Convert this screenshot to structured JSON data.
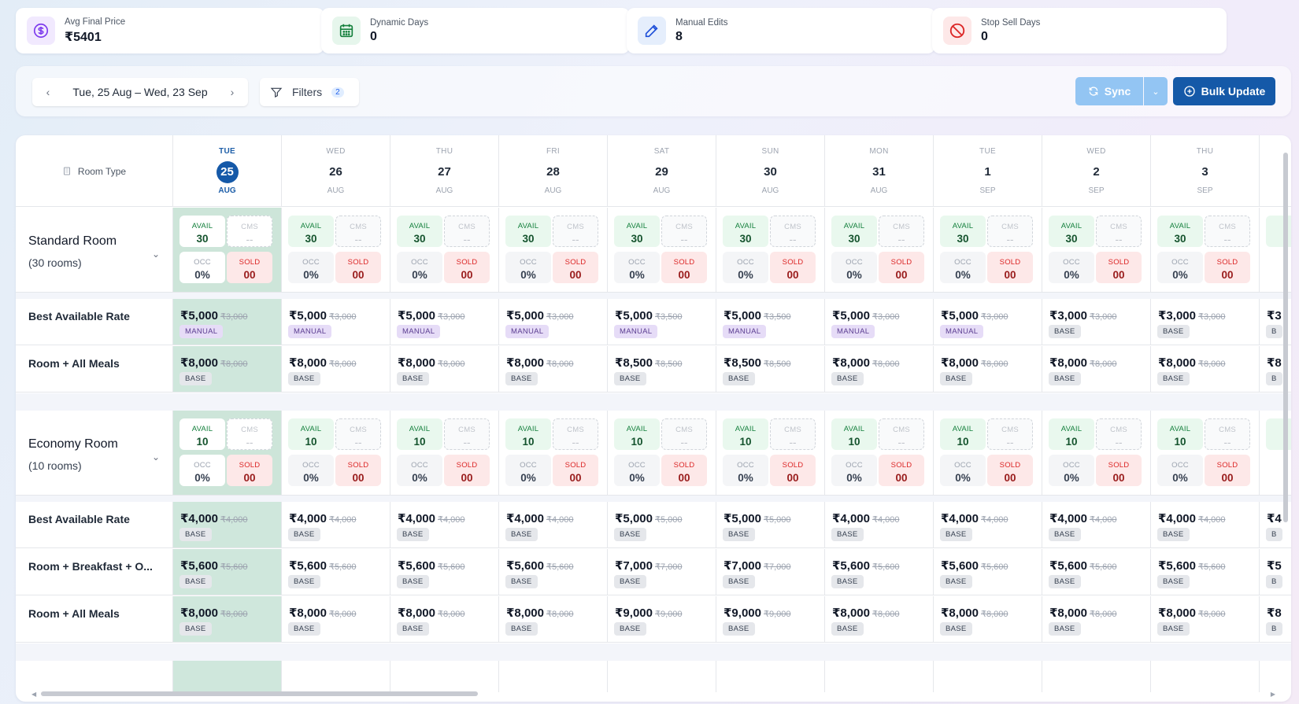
{
  "stats": [
    {
      "label": "Avg Final Price",
      "value": "₹5401",
      "icon": "dollar-circle-icon",
      "color": "#7c3aed",
      "bg": "#f1e9fe"
    },
    {
      "label": "Dynamic Days",
      "value": "0",
      "icon": "calendar-icon",
      "color": "#15803d",
      "bg": "#e6f6ec"
    },
    {
      "label": "Manual Edits",
      "value": "8",
      "icon": "pencil-icon",
      "color": "#1d4ed8",
      "bg": "#e5eefc"
    },
    {
      "label": "Stop Sell Days",
      "value": "0",
      "icon": "ban-icon",
      "color": "#dc2626",
      "bg": "#fde8e8"
    }
  ],
  "toolbar": {
    "date_range": "Tue, 25 Aug – Wed, 23 Sep",
    "filters_label": "Filters",
    "filters_count": "2",
    "sync_label": "Sync",
    "bulk_label": "Bulk Update"
  },
  "grid": {
    "room_type_label": "Room Type",
    "days": [
      {
        "dow": "TUE",
        "day": "25",
        "mon": "AUG",
        "today": true
      },
      {
        "dow": "WED",
        "day": "26",
        "mon": "AUG"
      },
      {
        "dow": "THU",
        "day": "27",
        "mon": "AUG"
      },
      {
        "dow": "FRI",
        "day": "28",
        "mon": "AUG"
      },
      {
        "dow": "SAT",
        "day": "29",
        "mon": "AUG"
      },
      {
        "dow": "SUN",
        "day": "30",
        "mon": "AUG"
      },
      {
        "dow": "MON",
        "day": "31",
        "mon": "AUG"
      },
      {
        "dow": "TUE",
        "day": "1",
        "mon": "SEP"
      },
      {
        "dow": "WED",
        "day": "2",
        "mon": "SEP"
      },
      {
        "dow": "THU",
        "day": "3",
        "mon": "SEP"
      }
    ],
    "labels": {
      "avail": "AVAIL",
      "cms": "CMS",
      "occ": "OCC",
      "sold": "SOLD",
      "cms_empty": "--"
    },
    "rooms": [
      {
        "name": "Standard Room",
        "sub": "(30 rooms)",
        "avail": "30",
        "occ": "0%",
        "sold": "00",
        "plans": [
          {
            "name": "Best Available Rate",
            "prices": [
              "₹5,000",
              "₹5,000",
              "₹5,000",
              "₹5,000",
              "₹5,000",
              "₹5,000",
              "₹5,000",
              "₹5,000",
              "₹3,000",
              "₹3,000"
            ],
            "old": [
              "₹3,000",
              "₹3,000",
              "₹3,000",
              "₹3,000",
              "₹3,500",
              "₹3,500",
              "₹3,000",
              "₹3,000",
              "₹3,000",
              "₹3,000"
            ],
            "tags": [
              "MANUAL",
              "MANUAL",
              "MANUAL",
              "MANUAL",
              "MANUAL",
              "MANUAL",
              "MANUAL",
              "MANUAL",
              "BASE",
              "BASE"
            ],
            "partial": "₹3",
            "partial_tag": "B"
          },
          {
            "name": "Room + All Meals",
            "prices": [
              "₹8,000",
              "₹8,000",
              "₹8,000",
              "₹8,000",
              "₹8,500",
              "₹8,500",
              "₹8,000",
              "₹8,000",
              "₹8,000",
              "₹8,000"
            ],
            "old": [
              "₹8,000",
              "₹8,000",
              "₹8,000",
              "₹8,000",
              "₹8,500",
              "₹8,500",
              "₹8,000",
              "₹8,000",
              "₹8,000",
              "₹8,000"
            ],
            "tags": [
              "BASE",
              "BASE",
              "BASE",
              "BASE",
              "BASE",
              "BASE",
              "BASE",
              "BASE",
              "BASE",
              "BASE"
            ],
            "partial": "₹8",
            "partial_tag": "B"
          }
        ]
      },
      {
        "name": "Economy Room",
        "sub": "(10 rooms)",
        "avail": "10",
        "occ": "0%",
        "sold": "00",
        "plans": [
          {
            "name": "Best Available Rate",
            "prices": [
              "₹4,000",
              "₹4,000",
              "₹4,000",
              "₹4,000",
              "₹5,000",
              "₹5,000",
              "₹4,000",
              "₹4,000",
              "₹4,000",
              "₹4,000"
            ],
            "old": [
              "₹4,000",
              "₹4,000",
              "₹4,000",
              "₹4,000",
              "₹5,000",
              "₹5,000",
              "₹4,000",
              "₹4,000",
              "₹4,000",
              "₹4,000"
            ],
            "tags": [
              "BASE",
              "BASE",
              "BASE",
              "BASE",
              "BASE",
              "BASE",
              "BASE",
              "BASE",
              "BASE",
              "BASE"
            ],
            "partial": "₹4",
            "partial_tag": "B"
          },
          {
            "name": "Room + Breakfast + O...",
            "prices": [
              "₹5,600",
              "₹5,600",
              "₹5,600",
              "₹5,600",
              "₹7,000",
              "₹7,000",
              "₹5,600",
              "₹5,600",
              "₹5,600",
              "₹5,600"
            ],
            "old": [
              "₹5,600",
              "₹5,600",
              "₹5,600",
              "₹5,600",
              "₹7,000",
              "₹7,000",
              "₹5,600",
              "₹5,600",
              "₹5,600",
              "₹5,600"
            ],
            "tags": [
              "BASE",
              "BASE",
              "BASE",
              "BASE",
              "BASE",
              "BASE",
              "BASE",
              "BASE",
              "BASE",
              "BASE"
            ],
            "partial": "₹5",
            "partial_tag": "B"
          },
          {
            "name": "Room + All Meals",
            "prices": [
              "₹8,000",
              "₹8,000",
              "₹8,000",
              "₹8,000",
              "₹9,000",
              "₹9,000",
              "₹8,000",
              "₹8,000",
              "₹8,000",
              "₹8,000"
            ],
            "old": [
              "₹8,000",
              "₹8,000",
              "₹8,000",
              "₹8,000",
              "₹9,000",
              "₹9,000",
              "₹8,000",
              "₹8,000",
              "₹8,000",
              "₹8,000"
            ],
            "tags": [
              "BASE",
              "BASE",
              "BASE",
              "BASE",
              "BASE",
              "BASE",
              "BASE",
              "BASE",
              "BASE",
              "BASE"
            ],
            "partial": "₹8",
            "partial_tag": "B"
          }
        ]
      }
    ]
  }
}
